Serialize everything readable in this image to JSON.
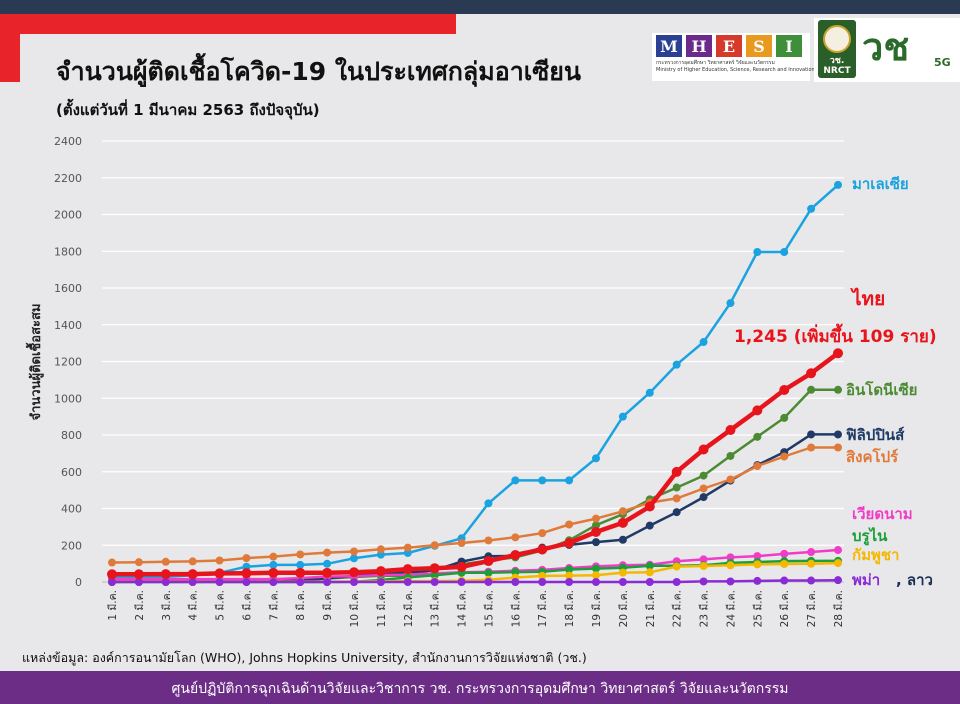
{
  "header": {
    "title": "จำนวนผู้ติดเชื้อโควิด-19 ในประเทศกลุ่มอาเซียน",
    "subtitle": "(ตั้งแต่วันที่ 1 มีนาคม 2563 ถึงปัจจุบัน)"
  },
  "logos": {
    "mhesi_letters": [
      "M",
      "H",
      "E",
      "S",
      "I"
    ],
    "mhesi_colors": [
      "#2b3f93",
      "#6c2a8a",
      "#d63a2a",
      "#e89a1f",
      "#3e8e3a"
    ],
    "mhesi_line1": "กระทรวงการอุดมศึกษา วิทยาศาสตร์ วิจัยและนวัตกรรม",
    "mhesi_line2": "Ministry of Higher Education, Science, Research and Innovation",
    "nrct_label": "วช.",
    "nrct_sub": "NRCT",
    "vch_mark": "วช",
    "five_g": "5G"
  },
  "source": "แหล่งข้อมูล: องค์การอนามัยโลก (WHO), Johns Hopkins University, สำนักงานการวิจัยแห่งชาติ (วช.)",
  "footer": "ศูนย์ปฏิบัติการฉุกเฉินด้านวิจัยและวิชาการ   วช.   กระทรวงการอุดมศึกษา วิทยาศาสตร์ วิจัยและนวัตกรรม",
  "chart_data": {
    "type": "line",
    "title": "จำนวนผู้ติดเชื้อโควิด-19 ในประเทศกลุ่มอาเซียน",
    "ylabel": "จำนวนผู้ติดเชื้อสะสม",
    "xlabel": "",
    "ylim": [
      0,
      2400
    ],
    "yticks": [
      0,
      200,
      400,
      600,
      800,
      1000,
      1200,
      1400,
      1600,
      1800,
      2000,
      2200,
      2400
    ],
    "grid": true,
    "categories": [
      "1 มี.ค.",
      "2 มี.ค.",
      "3 มี.ค.",
      "4 มี.ค.",
      "5 มี.ค.",
      "6 มี.ค.",
      "7 มี.ค.",
      "8 มี.ค.",
      "9 มี.ค.",
      "10 มี.ค.",
      "11 มี.ค.",
      "12 มี.ค.",
      "13 มี.ค.",
      "14 มี.ค.",
      "15 มี.ค.",
      "16 มี.ค.",
      "17 มี.ค.",
      "18 มี.ค.",
      "19 มี.ค.",
      "20 มี.ค.",
      "21 มี.ค.",
      "22 มี.ค.",
      "23 มี.ค.",
      "24 มี.ค.",
      "25 มี.ค.",
      "26 มี.ค.",
      "27 มี.ค.",
      "28 มี.ค."
    ],
    "annotation": "1,245 (เพิ่มขึ้น 109 ราย)",
    "series": [
      {
        "name": "มาเลเซีย",
        "color": "#1aa3e0",
        "width": 2.5,
        "labels": [
          "มาเลเซีย"
        ],
        "values": [
          25,
          29,
          29,
          36,
          50,
          83,
          93,
          93,
          99,
          129,
          149,
          158,
          197,
          238,
          428,
          553,
          553,
          553,
          673,
          900,
          1030,
          1183,
          1306,
          1518,
          1796,
          1796,
          2031,
          2161
        ]
      },
      {
        "name": "ไทย",
        "color": "#e8141c",
        "width": 4.5,
        "labels": [
          "ไทย"
        ],
        "values": [
          42,
          42,
          43,
          43,
          47,
          48,
          50,
          50,
          50,
          53,
          59,
          70,
          75,
          82,
          114,
          147,
          177,
          212,
          272,
          322,
          411,
          599,
          721,
          827,
          934,
          1045,
          1136,
          1245
        ]
      },
      {
        "name": "อินโดนีเซีย",
        "color": "#4c8a33",
        "width": 2.5,
        "labels": [
          "อินโดนีเซีย"
        ],
        "values": [
          0,
          2,
          2,
          2,
          2,
          4,
          4,
          6,
          19,
          27,
          34,
          34,
          69,
          96,
          117,
          134,
          172,
          227,
          309,
          369,
          450,
          514,
          579,
          686,
          790,
          893,
          1046,
          1046
        ]
      },
      {
        "name": "ฟิลิปปินส์",
        "color": "#1f3a66",
        "width": 2.5,
        "labels": [
          "ฟิลิปปินส์"
        ],
        "values": [
          3,
          3,
          3,
          3,
          3,
          5,
          6,
          10,
          20,
          33,
          49,
          52,
          64,
          111,
          140,
          142,
          187,
          202,
          217,
          230,
          307,
          380,
          462,
          552,
          636,
          707,
          803,
          803
        ]
      },
      {
        "name": "สิงคโปร์",
        "color": "#e07a3a",
        "width": 2.5,
        "labels": [
          "สิงคโปร์"
        ],
        "values": [
          106,
          108,
          110,
          112,
          117,
          130,
          138,
          150,
          160,
          166,
          178,
          187,
          200,
          212,
          226,
          243,
          266,
          313,
          345,
          385,
          432,
          455,
          509,
          558,
          631,
          683,
          732,
          732
        ]
      },
      {
        "name": "เวียดนาม",
        "color": "#f03cc8",
        "width": 2.5,
        "labels": [
          "เวียดนาม"
        ],
        "values": [
          16,
          16,
          16,
          16,
          16,
          16,
          16,
          21,
          30,
          31,
          38,
          39,
          47,
          53,
          56,
          61,
          66,
          76,
          85,
          91,
          94,
          113,
          123,
          134,
          141,
          153,
          163,
          174
        ]
      },
      {
        "name": "บรูไน",
        "color": "#1c9e3a",
        "width": 2.5,
        "labels": [
          "บรูไน"
        ],
        "values": [
          0,
          0,
          0,
          0,
          0,
          0,
          0,
          0,
          0,
          1,
          11,
          25,
          37,
          50,
          50,
          54,
          56,
          68,
          73,
          78,
          88,
          88,
          91,
          104,
          109,
          114,
          115,
          115
        ]
      },
      {
        "name": "กัมพูชา",
        "color": "#f5b800",
        "width": 2.5,
        "labels": [
          "กัมพูชา"
        ],
        "values": [
          1,
          1,
          1,
          1,
          1,
          1,
          2,
          2,
          2,
          2,
          3,
          5,
          5,
          7,
          12,
          24,
          33,
          35,
          37,
          51,
          53,
          84,
          87,
          91,
          96,
          98,
          99,
          103
        ]
      },
      {
        "name": "พม่า",
        "color": "#8a2bd6",
        "width": 2.5,
        "labels": [
          "พม่า",
          ", ลาว"
        ],
        "values": [
          0,
          0,
          0,
          0,
          0,
          0,
          0,
          0,
          0,
          0,
          0,
          0,
          0,
          0,
          0,
          0,
          0,
          0,
          0,
          0,
          0,
          0,
          3,
          3,
          6,
          8,
          8,
          10
        ]
      }
    ]
  }
}
